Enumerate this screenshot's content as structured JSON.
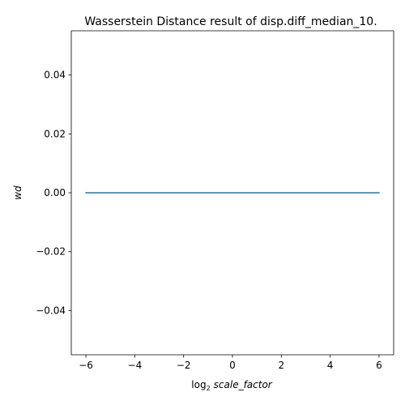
{
  "chart_data": {
    "type": "line",
    "title": "Wasserstein Distance result of disp.diff_median_10.",
    "xlabel": {
      "prefix": "log",
      "subscript": "2",
      "var": "scale_factor"
    },
    "ylabel": "wd",
    "xlim": [
      -6.6,
      6.6
    ],
    "ylim": [
      -0.055,
      0.055
    ],
    "x_ticks": [
      -6,
      -4,
      -2,
      0,
      2,
      4,
      6
    ],
    "x_tick_labels": [
      "−6",
      "−4",
      "−2",
      "0",
      "2",
      "4",
      "6"
    ],
    "y_ticks": [
      -0.04,
      -0.02,
      0.0,
      0.02,
      0.04
    ],
    "y_tick_labels": [
      "−0.04",
      "−0.02",
      "0.00",
      "0.02",
      "0.04"
    ],
    "grid": false,
    "series": [
      {
        "color": "#1f77b4",
        "x": [
          -6,
          -5,
          -4,
          -3,
          -2,
          -1,
          0,
          1,
          2,
          3,
          4,
          5,
          6
        ],
        "y": [
          0,
          0,
          0,
          0,
          0,
          0,
          0,
          0,
          0,
          0,
          0,
          0,
          0
        ]
      }
    ]
  }
}
